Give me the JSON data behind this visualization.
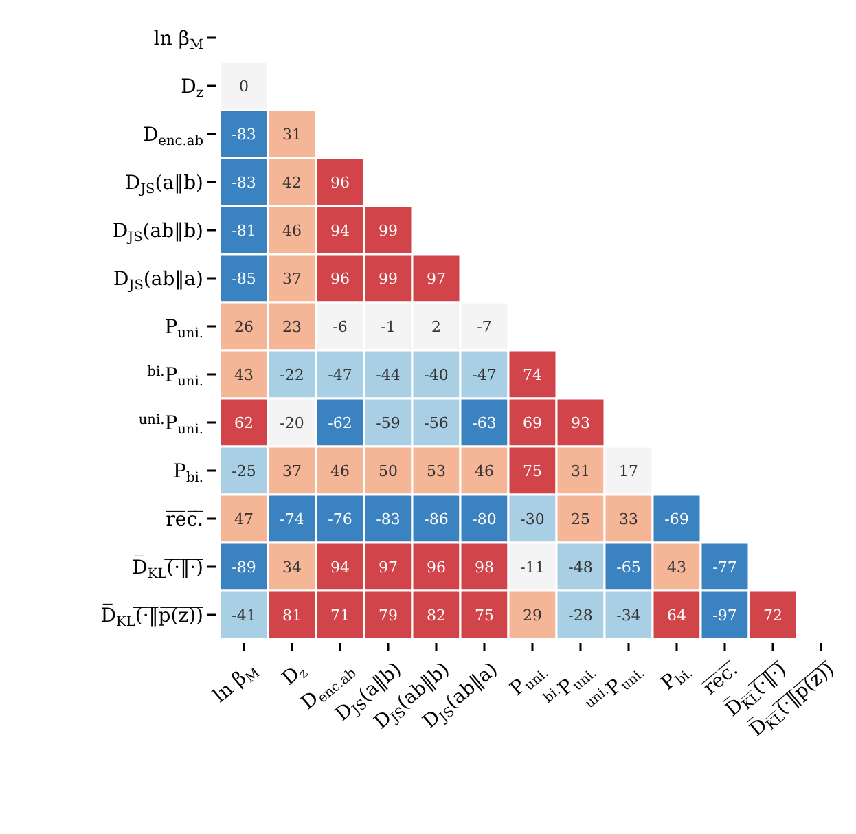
{
  "chart_data": {
    "type": "heatmap",
    "categories": [
      "ln β$_{M}$",
      "D$_{z}$",
      "D$_{enc.ab}$",
      "D$_{JS}$(a‖b)",
      "D$_{JS}$(ab‖b)",
      "D$_{JS}$(ab‖a)",
      "P$_{uni.}$",
      "$^{bi.}$P$_{uni.}$",
      "$^{uni.}$P$_{uni.}$",
      "P$_{bi.}$",
      "r̅e̅c̅.̅",
      "D̅$_{K̅L̅}$(̅·̅‖̅·̅)̅",
      "D̅$_{K̅L̅}$(̅·̅‖̅p̅(̅z̅)̅)̅"
    ],
    "y_categories": [
      "ln β$_{M}$",
      "D$_{z}$",
      "D$_{enc.ab}$",
      "D$_{JS}$(a‖b)",
      "D$_{JS}$(ab‖b)",
      "D$_{JS}$(ab‖a)",
      "P$_{uni.}$",
      "$^{bi.}$P$_{uni.}$",
      "$^{uni.}$P$_{uni.}$",
      "P$_{bi.}$",
      "r̅e̅c̅.̅",
      "D̅$_{K̅L̅}$(̅·̅‖̅·̅)̅",
      "D̅$_{K̅L̅}$(̅·̅‖̅p̅(̅z̅)̅)̅"
    ],
    "cells": [
      [
        null,
        null,
        null,
        null,
        null,
        null,
        null,
        null,
        null,
        null,
        null,
        null,
        null
      ],
      [
        0,
        null,
        null,
        null,
        null,
        null,
        null,
        null,
        null,
        null,
        null,
        null,
        null
      ],
      [
        -83,
        31,
        null,
        null,
        null,
        null,
        null,
        null,
        null,
        null,
        null,
        null,
        null
      ],
      [
        -83,
        42,
        96,
        null,
        null,
        null,
        null,
        null,
        null,
        null,
        null,
        null,
        null
      ],
      [
        -81,
        46,
        94,
        99,
        null,
        null,
        null,
        null,
        null,
        null,
        null,
        null,
        null
      ],
      [
        -85,
        37,
        96,
        99,
        97,
        null,
        null,
        null,
        null,
        null,
        null,
        null,
        null
      ],
      [
        26,
        23,
        -6,
        -1,
        2,
        -7,
        null,
        null,
        null,
        null,
        null,
        null,
        null
      ],
      [
        43,
        -22,
        -47,
        -44,
        -40,
        -47,
        74,
        null,
        null,
        null,
        null,
        null,
        null
      ],
      [
        62,
        -20,
        -62,
        -59,
        -56,
        -63,
        69,
        93,
        null,
        null,
        null,
        null,
        null
      ],
      [
        -25,
        37,
        46,
        50,
        53,
        46,
        75,
        31,
        17,
        null,
        null,
        null,
        null
      ],
      [
        47,
        -74,
        -76,
        -83,
        -86,
        -80,
        -30,
        25,
        33,
        -69,
        null,
        null,
        null
      ],
      [
        -89,
        34,
        94,
        97,
        96,
        98,
        -11,
        -48,
        -65,
        43,
        -77,
        null,
        null
      ],
      [
        -41,
        81,
        71,
        79,
        82,
        75,
        29,
        -28,
        -34,
        64,
        -97,
        72,
        null
      ]
    ],
    "data_labels": true
  }
}
